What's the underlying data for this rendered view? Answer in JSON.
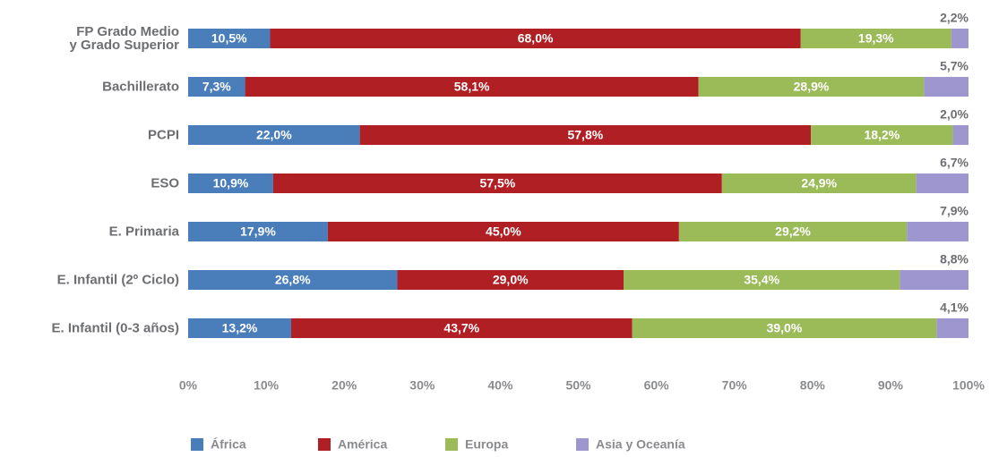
{
  "chart_data": {
    "type": "stacked_bar_horizontal",
    "categories": [
      "FP Grado Medio\ny Grado Superior",
      "Bachillerato",
      "PCPI",
      "ESO",
      "E. Primaria",
      "E. Infantil (2º Ciclo)",
      "E. Infantil (0-3 años)"
    ],
    "series": [
      {
        "name": "África",
        "color": "#4a7ebb",
        "values": [
          10.5,
          7.3,
          22.0,
          10.9,
          17.9,
          26.8,
          13.2
        ],
        "value_labels": [
          "10,5%",
          "7,3%",
          "22,0%",
          "10,9%",
          "17,9%",
          "26,8%",
          "13,2%"
        ]
      },
      {
        "name": "América",
        "color": "#b01f24",
        "values": [
          68.0,
          58.1,
          57.8,
          57.5,
          45.0,
          29.0,
          43.7
        ],
        "value_labels": [
          "68,0%",
          "58,1%",
          "57,8%",
          "57,5%",
          "45,0%",
          "29,0%",
          "43,7%"
        ]
      },
      {
        "name": "Europa",
        "color": "#9bbb59",
        "values": [
          19.3,
          28.9,
          18.2,
          24.9,
          29.2,
          35.4,
          39.0
        ],
        "value_labels": [
          "19,3%",
          "28,9%",
          "18,2%",
          "24,9%",
          "29,2%",
          "35,4%",
          "39,0%"
        ]
      },
      {
        "name": "Asia y Oceanía",
        "color": "#9e97cf",
        "values": [
          2.2,
          5.7,
          2.0,
          6.7,
          7.9,
          8.8,
          4.1
        ],
        "value_labels": [
          "2,2%",
          "5,7%",
          "2,0%",
          "6,7%",
          "7,9%",
          "8,8%",
          "4,1%"
        ]
      }
    ],
    "xlim": [
      0,
      100
    ],
    "xticks": [
      {
        "value": 0,
        "label": "0%"
      },
      {
        "value": 10,
        "label": "10%"
      },
      {
        "value": 20,
        "label": "20%"
      },
      {
        "value": 30,
        "label": "30%"
      },
      {
        "value": 40,
        "label": "40%"
      },
      {
        "value": 50,
        "label": "50%"
      },
      {
        "value": 60,
        "label": "60%"
      },
      {
        "value": 70,
        "label": "70%"
      },
      {
        "value": 80,
        "label": "80%"
      },
      {
        "value": 90,
        "label": "90%"
      },
      {
        "value": 100,
        "label": "100%"
      }
    ],
    "grid": false,
    "legend": "bottom"
  }
}
